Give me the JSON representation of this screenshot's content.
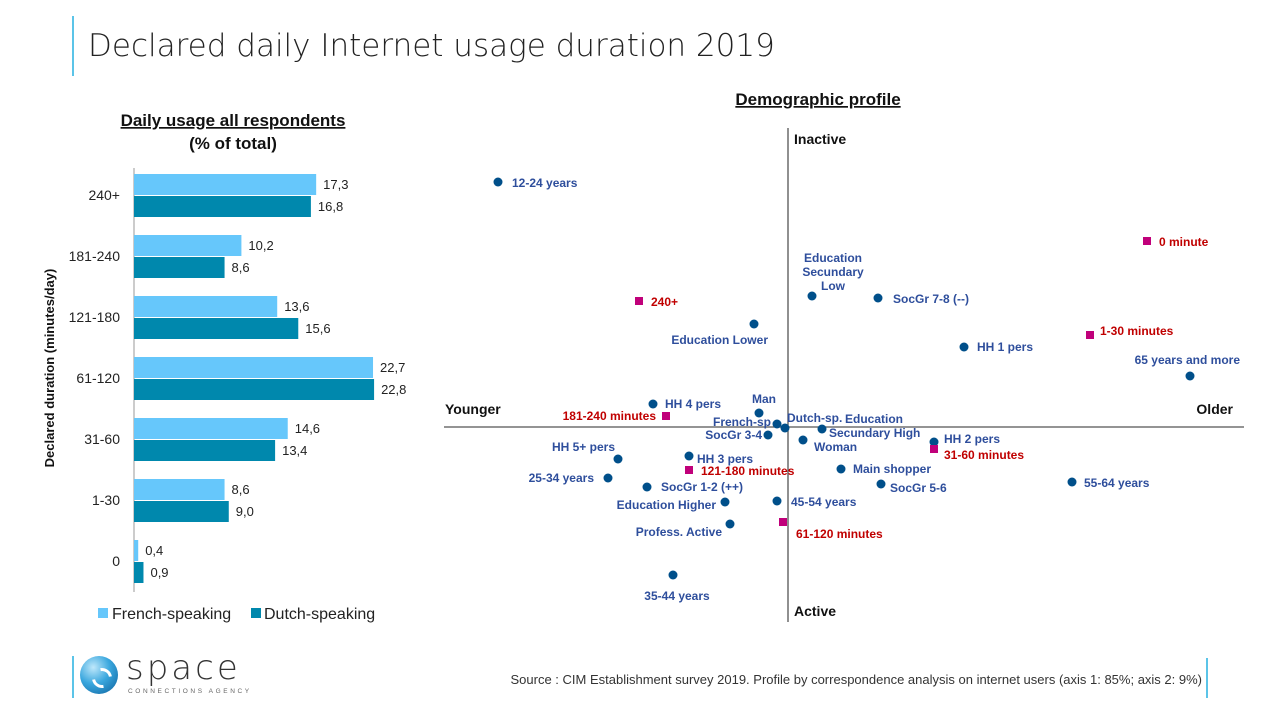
{
  "header": {
    "title": "Declared daily Internet usage duration 2019"
  },
  "footer": {
    "source": "Source : CIM Establishment survey 2019. Profile by correspondence analysis on internet users (axis 1: 85%; axis 2: 9%)",
    "logo_text": "space",
    "logo_subtext": "CONNECTIONS AGENCY"
  },
  "colors": {
    "french": "#66c7fb",
    "dutch": "#0088ad",
    "profile_dot": "#004f8a",
    "profile_label": "#2e4e9c",
    "duration_marker": "#c0007a",
    "duration_label": "#c00000"
  },
  "chart_data": [
    {
      "type": "bar",
      "orientation": "horizontal",
      "title": "Daily usage all respondents",
      "subtitle": "(% of total)",
      "ylabel": "Declared duration (minutes/day)",
      "categories": [
        "240+",
        "181-240",
        "121-180",
        "61-120",
        "31-60",
        "1-30",
        "0"
      ],
      "series": [
        {
          "name": "French-speaking",
          "values": [
            "17,3",
            "10,2",
            "13,6",
            "22,7",
            "14,6",
            "8,6",
            "0,4"
          ]
        },
        {
          "name": "Dutch-speaking",
          "values": [
            "16,8",
            "8,6",
            "15,6",
            "22,8",
            "13,4",
            "9,0",
            "0,9"
          ]
        }
      ],
      "legend": "bottom",
      "grid": false
    },
    {
      "type": "scatter",
      "title": "Demographic profile",
      "axis_labels": {
        "top": "Inactive",
        "bottom": "Active",
        "left": "Younger",
        "right": "Older"
      },
      "grid": false,
      "points": [
        {
          "label": "12-24 years",
          "kind": "profile",
          "x": -2.9,
          "y": 2.45
        },
        {
          "label": "0 minute",
          "kind": "duration",
          "x": 3.59,
          "y": 1.86
        },
        {
          "label": "Education\nSecundary\nLow",
          "kind": "profile",
          "x": 0.24,
          "y": 1.31
        },
        {
          "label": "SocGr 7-8 (--)",
          "kind": "profile",
          "x": 0.9,
          "y": 1.29
        },
        {
          "label": "240+",
          "kind": "duration",
          "x": -1.49,
          "y": 1.26
        },
        {
          "label": "1-30 minutes",
          "kind": "duration",
          "x": 3.02,
          "y": 0.92
        },
        {
          "label": "Education Lower",
          "kind": "profile",
          "x": -0.34,
          "y": 1.03
        },
        {
          "label": "HH 1 pers",
          "kind": "profile",
          "x": 1.76,
          "y": 0.8
        },
        {
          "label": "65 years and more",
          "kind": "profile",
          "x": 4.02,
          "y": 0.51
        },
        {
          "label": "HH 4 pers",
          "kind": "profile",
          "x": -1.35,
          "y": 0.23
        },
        {
          "label": "181-240 minutes",
          "kind": "duration",
          "x": -1.22,
          "y": 0.11
        },
        {
          "label": "Man",
          "kind": "profile",
          "x": -0.29,
          "y": 0.14
        },
        {
          "label": "French-sp",
          "kind": "profile",
          "x": -0.11,
          "y": 0.03
        },
        {
          "label": "Dutch-sp.",
          "kind": "profile",
          "x": -0.03,
          "y": -0.01
        },
        {
          "label": "Education\nSecundary High",
          "kind": "profile",
          "x": 0.34,
          "y": -0.02
        },
        {
          "label": "SocGr 3-4",
          "kind": "profile",
          "x": -0.2,
          "y": -0.08
        },
        {
          "label": "Woman",
          "kind": "profile",
          "x": 0.15,
          "y": -0.13
        },
        {
          "label": "HH 2 pers",
          "kind": "profile",
          "x": 1.46,
          "y": -0.15
        },
        {
          "label": "31-60 minutes",
          "kind": "duration",
          "x": 1.46,
          "y": -0.22
        },
        {
          "label": "HH 5+ pers",
          "kind": "profile",
          "x": -1.7,
          "y": -0.32
        },
        {
          "label": "HH 3 pers",
          "kind": "profile",
          "x": -0.99,
          "y": -0.29
        },
        {
          "label": "121-180  minutes",
          "kind": "duration",
          "x": -0.99,
          "y": -0.43
        },
        {
          "label": "Main shopper",
          "kind": "profile",
          "x": 0.53,
          "y": -0.42
        },
        {
          "label": "25-34 years",
          "kind": "profile",
          "x": -1.8,
          "y": -0.51
        },
        {
          "label": "SocGr 1-2 (++)",
          "kind": "profile",
          "x": -1.41,
          "y": -0.6
        },
        {
          "label": "SocGr 5-6",
          "kind": "profile",
          "x": 0.93,
          "y": -0.57
        },
        {
          "label": "55-64 years",
          "kind": "profile",
          "x": 2.84,
          "y": -0.55
        },
        {
          "label": "Education Higher",
          "kind": "profile",
          "x": -0.63,
          "y": -0.75
        },
        {
          "label": "45-54 years",
          "kind": "profile",
          "x": -0.11,
          "y": -0.74
        },
        {
          "label": "61-120 minutes",
          "kind": "duration",
          "x": -0.05,
          "y": -0.95
        },
        {
          "label": "Profess. Active",
          "kind": "profile",
          "x": -0.58,
          "y": -0.97
        },
        {
          "label": "35-44 years",
          "kind": "profile",
          "x": -1.15,
          "y": -1.48
        }
      ]
    }
  ]
}
